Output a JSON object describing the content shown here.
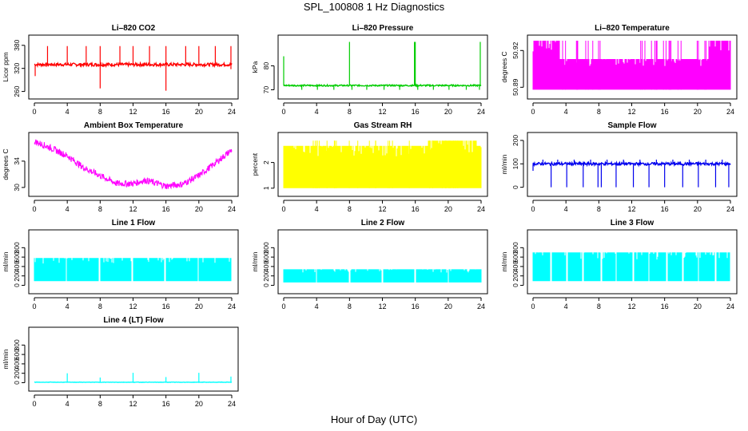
{
  "figure": {
    "title": "SPL_100808  1 Hz Diagnostics",
    "xlabel": "Hour of Day (UTC)"
  },
  "chart_data": [
    {
      "type": "line",
      "title": "Li–820 CO2",
      "ylabel": "Licor ppm",
      "color": "#ff0000",
      "xlim": [
        0,
        24
      ],
      "xticks": [
        0,
        4,
        8,
        12,
        16,
        20,
        24
      ],
      "ylim": [
        255,
        392
      ],
      "yticks": [
        260,
        320,
        380
      ],
      "series": [
        {
          "shape": "noisy",
          "base": 330,
          "amp": 4,
          "spikes_up": [
            [
              1.6,
              378
            ],
            [
              4,
              378
            ],
            [
              6.3,
              378
            ],
            [
              8,
              378
            ],
            [
              10.4,
              378
            ],
            [
              12,
              378
            ],
            [
              14,
              378
            ],
            [
              16,
              378
            ],
            [
              18.4,
              378
            ],
            [
              20,
              378
            ],
            [
              22,
              378
            ],
            [
              23.9,
              378
            ]
          ],
          "spikes_down": [
            [
              0.1,
              300
            ],
            [
              8,
              268
            ],
            [
              16,
              262
            ],
            [
              23.9,
              318
            ]
          ]
        }
      ]
    },
    {
      "type": "line",
      "title": "Li–820 Pressure",
      "ylabel": "kPa",
      "color": "#00cc00",
      "xlim": [
        0,
        24
      ],
      "xticks": [
        0,
        4,
        8,
        12,
        16,
        20,
        24
      ],
      "ylim": [
        68.5,
        90.5
      ],
      "yticks": [
        70,
        80
      ],
      "series": [
        {
          "shape": "noisy",
          "base": 71.8,
          "amp": 0.3,
          "spikes_up": [
            [
              0,
              84
            ],
            [
              8,
              90
            ],
            [
              15.9,
              90
            ],
            [
              16,
              90
            ],
            [
              23.9,
              90
            ]
          ],
          "spikes_down": [
            [
              2.2,
              70
            ],
            [
              4.1,
              70
            ],
            [
              6.1,
              70
            ],
            [
              8.3,
              70
            ],
            [
              10.1,
              70
            ],
            [
              12.2,
              70
            ],
            [
              14.1,
              70
            ],
            [
              16.3,
              70
            ],
            [
              18.2,
              70
            ],
            [
              20.1,
              70
            ],
            [
              22.2,
              70
            ],
            [
              23.8,
              70
            ]
          ]
        }
      ]
    },
    {
      "type": "line",
      "title": "Li–820 Temperature",
      "ylabel": "degrees C",
      "color": "#ff00ff",
      "xlim": [
        0,
        24
      ],
      "xticks": [
        0,
        4,
        8,
        12,
        16,
        20,
        24
      ],
      "ylim": [
        50.885,
        50.928
      ],
      "yticks": [
        50.89,
        50.92
      ],
      "series": [
        {
          "shape": "band",
          "low": 50.888,
          "high": 50.913,
          "full_high": 50.928,
          "full_ranges": [
            [
              0,
              3.3
            ],
            [
              21.3,
              24
            ]
          ]
        }
      ]
    },
    {
      "type": "line",
      "title": "Ambient Box Temperature",
      "ylabel": "degrees C",
      "color": "#ff00ff",
      "xlim": [
        0,
        24
      ],
      "xticks": [
        0,
        4,
        8,
        12,
        16,
        20,
        24
      ],
      "ylim": [
        29.5,
        37.5
      ],
      "yticks": [
        30,
        34
      ],
      "series": [
        {
          "shape": "curve",
          "points": [
            [
              0,
              37
            ],
            [
              2,
              36
            ],
            [
              4,
              34.8
            ],
            [
              6,
              33
            ],
            [
              8,
              31.8
            ],
            [
              10,
              30.6
            ],
            [
              12,
              30.6
            ],
            [
              13.5,
              31.1
            ],
            [
              15,
              30.6
            ],
            [
              16,
              30.2
            ],
            [
              18,
              30.5
            ],
            [
              20,
              31.8
            ],
            [
              22,
              33.7
            ],
            [
              24,
              35.7
            ]
          ],
          "noise": 0.5
        }
      ]
    },
    {
      "type": "line",
      "title": "Gas Stream RH",
      "ylabel": "percent",
      "color": "#ffff00",
      "xlim": [
        0,
        24
      ],
      "xticks": [
        0,
        4,
        8,
        12,
        16,
        20,
        24
      ],
      "ylim": [
        0.9,
        2.95
      ],
      "yticks": [
        1.0,
        2.0
      ],
      "series": [
        {
          "shape": "band",
          "low": 1.0,
          "high": 2.65,
          "full_high": 2.85,
          "full_ranges": [
            [
              17.5,
              23.5
            ]
          ]
        }
      ]
    },
    {
      "type": "line",
      "title": "Sample Flow",
      "ylabel": "ml/min",
      "color": "#0000ee",
      "xlim": [
        0,
        24
      ],
      "xticks": [
        0,
        4,
        8,
        12,
        16,
        20,
        24
      ],
      "ylim": [
        -15,
        210
      ],
      "yticks": [
        0,
        100,
        200
      ],
      "series": [
        {
          "shape": "noisy",
          "base": 100,
          "amp": 6,
          "spikes_up": [
            [
              1.2,
              118
            ],
            [
              3,
              118
            ],
            [
              5,
              118
            ],
            [
              7,
              118
            ],
            [
              9,
              118
            ],
            [
              11,
              118
            ],
            [
              13,
              118
            ],
            [
              15,
              118
            ],
            [
              17,
              118
            ],
            [
              19,
              118
            ],
            [
              21,
              118
            ],
            [
              23,
              118
            ]
          ],
          "spikes_down": [
            [
              0,
              70
            ],
            [
              2.2,
              0
            ],
            [
              4.1,
              0
            ],
            [
              6.1,
              0
            ],
            [
              7.9,
              0
            ],
            [
              8.3,
              0
            ],
            [
              10.1,
              0
            ],
            [
              12.2,
              0
            ],
            [
              14.1,
              0
            ],
            [
              16,
              0
            ],
            [
              18.2,
              0
            ],
            [
              20.1,
              0
            ],
            [
              22.2,
              0
            ],
            [
              23.8,
              0
            ]
          ]
        }
      ]
    },
    {
      "type": "line",
      "title": "Line 1 Flow",
      "ylabel": "ml/min",
      "color": "#00ffff",
      "xlim": [
        0,
        24
      ],
      "xticks": [
        0,
        4,
        8,
        12,
        16,
        20,
        24
      ],
      "ylim": [
        -60,
        1060
      ],
      "yticks": [
        0,
        200,
        400,
        600,
        800
      ],
      "series": [
        {
          "shape": "band",
          "low": 90,
          "high": 580,
          "end": 23.9,
          "gaps": [
            3.9,
            7.9,
            11.9,
            15.9,
            19.9
          ]
        }
      ]
    },
    {
      "type": "line",
      "title": "Line 2 Flow",
      "ylabel": "ml/min",
      "color": "#00ffff",
      "xlim": [
        0,
        24
      ],
      "xticks": [
        0,
        4,
        8,
        12,
        16,
        20,
        24
      ],
      "ylim": [
        -60,
        1060
      ],
      "yticks": [
        0,
        200,
        400,
        600,
        800
      ],
      "series": [
        {
          "shape": "band",
          "low": 60,
          "high": 340,
          "end": 24,
          "gaps": [
            4,
            8,
            12,
            16,
            20
          ]
        }
      ]
    },
    {
      "type": "line",
      "title": "Line 3 Flow",
      "ylabel": "ml/min",
      "color": "#00ffff",
      "xlim": [
        0,
        24
      ],
      "xticks": [
        0,
        4,
        8,
        12,
        16,
        20,
        24
      ],
      "ylim": [
        -60,
        1060
      ],
      "yticks": [
        0,
        200,
        400,
        600,
        800
      ],
      "series": [
        {
          "shape": "band",
          "low": 90,
          "high": 700,
          "end": 23.9,
          "gaps": [
            2.2,
            4.1,
            6.1,
            8.3,
            10.1,
            12.2,
            14.1,
            16.3,
            18.2,
            20.1,
            22.2
          ]
        }
      ]
    },
    {
      "type": "line",
      "title": "Line 4 (LT) Flow",
      "ylabel": "ml/min",
      "color": "#00ffff",
      "xlim": [
        0,
        24
      ],
      "xticks": [
        0,
        4,
        8,
        12,
        16,
        20,
        24
      ],
      "ylim": [
        -60,
        1060
      ],
      "yticks": [
        0,
        200,
        400,
        600,
        800
      ],
      "series": [
        {
          "shape": "noisy",
          "base": 10,
          "amp": 4,
          "spikes_up": [
            [
              4,
              200
            ],
            [
              8,
              110
            ],
            [
              12,
              210
            ],
            [
              16,
              120
            ],
            [
              20,
              210
            ],
            [
              23.9,
              130
            ]
          ],
          "spikes_down": []
        }
      ]
    }
  ]
}
